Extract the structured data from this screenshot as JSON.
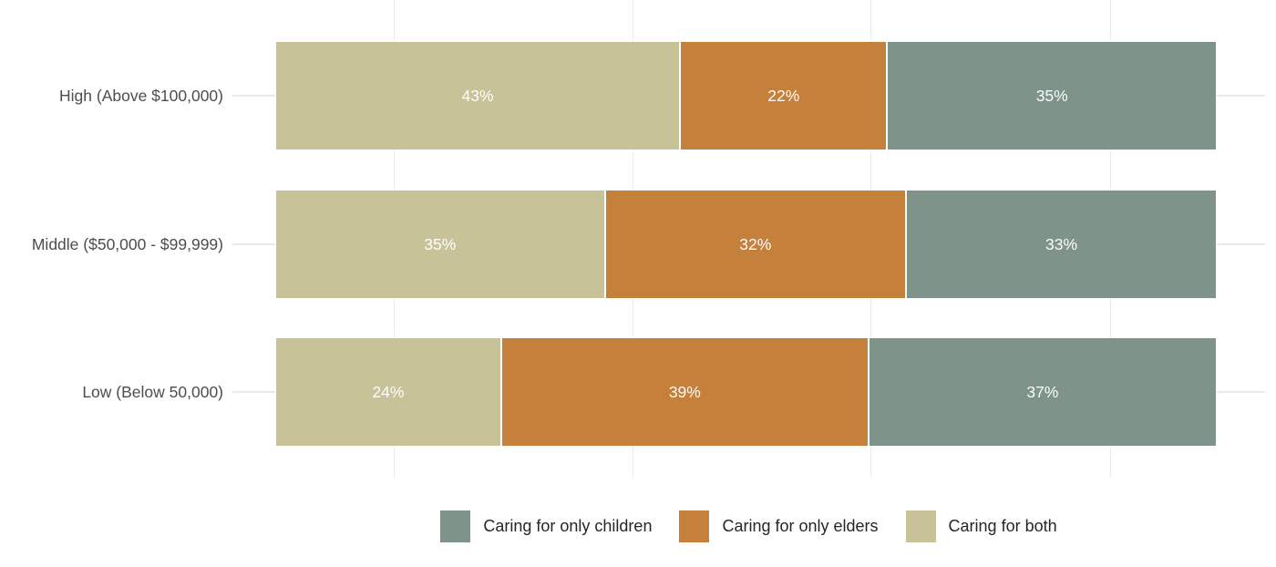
{
  "chart_data": {
    "type": "bar",
    "orientation": "horizontal",
    "stacked": true,
    "title": "",
    "xlabel": "",
    "ylabel": "",
    "xlim": [
      0,
      100
    ],
    "value_suffix": "%",
    "grid": "minor-vertical-only",
    "legend_position": "bottom-center",
    "categories": [
      "High (Above $100,000)",
      "Middle ($50,000 - $99,999)",
      "Low (Below 50,000)"
    ],
    "series": [
      {
        "name": "Caring for both",
        "color": "#c8c299",
        "values": [
          43,
          35,
          24
        ]
      },
      {
        "name": "Caring for only elders",
        "color": "#c5813c",
        "values": [
          22,
          32,
          39
        ]
      },
      {
        "name": "Caring for only children",
        "color": "#7e948b",
        "values": [
          35,
          33,
          37
        ]
      }
    ],
    "legend": [
      {
        "label": "Caring for only children",
        "color": "#7e948b"
      },
      {
        "label": "Caring for only elders",
        "color": "#c5813c"
      },
      {
        "label": "Caring for both",
        "color": "#c8c299"
      }
    ]
  },
  "colors": {
    "background": "#ffffff",
    "grid_minor": "#ececec",
    "grid_major_y": "#e9e9e9",
    "axis_label_text": "#4d4d4d",
    "bar_value_text": "#ffffff",
    "legend_text": "#262626",
    "segment_separator": "#ffffff"
  }
}
